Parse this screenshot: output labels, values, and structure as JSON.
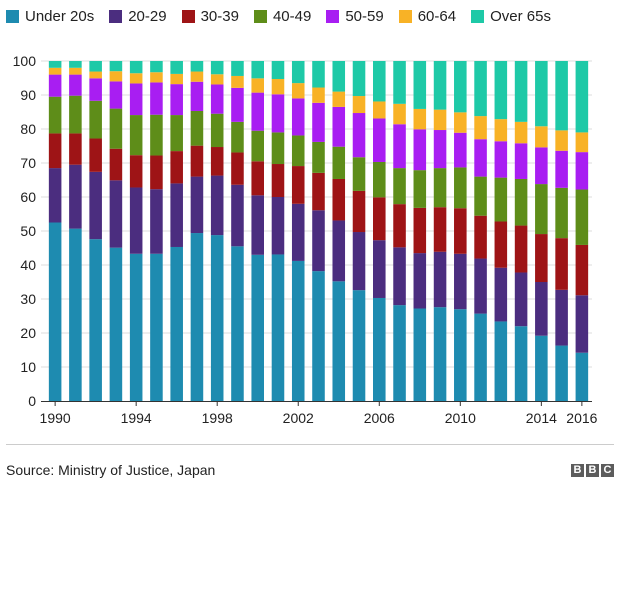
{
  "chart_data": {
    "type": "bar",
    "stacked": true,
    "title": "",
    "xlabel": "",
    "ylabel": "",
    "ylim": [
      0,
      100
    ],
    "yticks": [
      0,
      10,
      20,
      30,
      40,
      50,
      60,
      70,
      80,
      90,
      100
    ],
    "xtick_labels": [
      {
        "year": 1990,
        "label": "1990"
      },
      {
        "year": 1994,
        "label": "1994"
      },
      {
        "year": 1998,
        "label": "1998"
      },
      {
        "year": 2002,
        "label": "2002"
      },
      {
        "year": 2006,
        "label": "2006"
      },
      {
        "year": 2010,
        "label": "2010"
      },
      {
        "year": 2014,
        "label": "2014"
      },
      {
        "year": 2016,
        "label": "2016"
      }
    ],
    "categories": [
      1990,
      1991,
      1992,
      1993,
      1994,
      1995,
      1996,
      1997,
      1998,
      1999,
      2000,
      2001,
      2002,
      2003,
      2004,
      2005,
      2006,
      2007,
      2008,
      2009,
      2010,
      2011,
      2012,
      2013,
      2014,
      2015,
      2016
    ],
    "series": [
      {
        "name": "Under 20s",
        "color": "#1e8bb0",
        "values": [
          52.5,
          50.7,
          47.6,
          45.1,
          43.3,
          43.3,
          45.3,
          49.4,
          48.8,
          45.5,
          43.0,
          43.1,
          41.2,
          38.2,
          35.2,
          32.6,
          30.3,
          28.2,
          27.2,
          27.6,
          27.0,
          25.7,
          23.4,
          22.0,
          19.2,
          16.3,
          14.2
        ]
      },
      {
        "name": "20-29",
        "color": "#4b2d7f",
        "values": [
          16.0,
          18.8,
          19.8,
          19.8,
          19.5,
          19.0,
          18.7,
          16.6,
          17.5,
          18.1,
          17.5,
          16.9,
          16.8,
          17.9,
          17.9,
          17.1,
          17.0,
          17.0,
          16.3,
          16.3,
          16.3,
          16.2,
          15.8,
          15.8,
          15.8,
          16.4,
          16.9
        ]
      },
      {
        "name": "30-39",
        "color": "#9e1416",
        "values": [
          10.2,
          9.2,
          9.8,
          9.3,
          9.5,
          9.9,
          9.5,
          9.1,
          8.4,
          9.5,
          10.0,
          9.7,
          11.1,
          11.0,
          12.2,
          12.1,
          12.6,
          12.7,
          13.3,
          13.1,
          13.4,
          12.6,
          13.6,
          13.8,
          14.1,
          15.2,
          14.8
        ]
      },
      {
        "name": "40-49",
        "color": "#5e8d19",
        "values": [
          10.8,
          11.1,
          11.1,
          11.8,
          11.8,
          12.0,
          10.6,
          10.2,
          9.8,
          9.0,
          9.0,
          9.3,
          9.0,
          9.1,
          9.5,
          9.9,
          10.4,
          10.6,
          11.1,
          11.5,
          12.0,
          11.5,
          12.9,
          13.7,
          14.7,
          14.8,
          16.3
        ]
      },
      {
        "name": "50-59",
        "color": "#a81ef2",
        "values": [
          6.5,
          6.2,
          6.6,
          8.0,
          9.3,
          9.5,
          9.1,
          8.6,
          8.6,
          10.0,
          11.2,
          11.2,
          10.9,
          11.5,
          11.7,
          13.0,
          12.8,
          12.9,
          12.0,
          11.2,
          10.2,
          11.0,
          10.7,
          10.5,
          10.8,
          10.9,
          11.0
        ]
      },
      {
        "name": "60-64",
        "color": "#f8b226",
        "values": [
          2.0,
          2.0,
          2.0,
          3.0,
          3.0,
          3.0,
          3.0,
          3.0,
          3.0,
          3.5,
          4.2,
          4.5,
          4.5,
          4.5,
          4.5,
          5.0,
          5.0,
          6.0,
          6.0,
          6.0,
          6.0,
          6.8,
          6.5,
          6.3,
          6.2,
          6.0,
          5.8
        ]
      },
      {
        "name": "Over 65s",
        "color": "#1ec9a7",
        "values": [
          2.0,
          2.0,
          3.1,
          3.0,
          3.6,
          3.3,
          3.8,
          3.1,
          3.9,
          4.4,
          5.1,
          5.3,
          6.5,
          7.8,
          9.0,
          10.3,
          11.9,
          12.6,
          14.1,
          14.3,
          15.1,
          16.2,
          17.1,
          17.9,
          19.2,
          20.4,
          21.0
        ]
      }
    ]
  },
  "footer": {
    "source": "Source: Ministry of Justice, Japan",
    "logo_letters": [
      "B",
      "B",
      "C"
    ]
  }
}
